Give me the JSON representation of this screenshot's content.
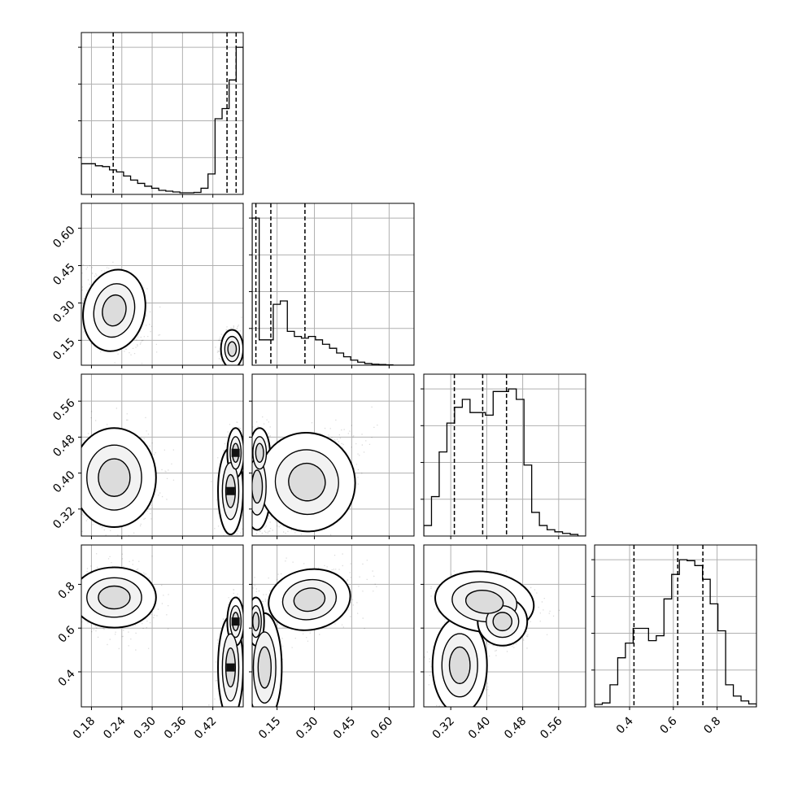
{
  "chart_data": {
    "type": "corner",
    "n_params": 4,
    "grid": true,
    "colors": {
      "line": "#000000",
      "grid": "#b0b0b0",
      "points": "#000000"
    },
    "params": [
      {
        "range": [
          0.16,
          0.48
        ],
        "ticks": [
          0.18,
          0.24,
          0.3,
          0.36,
          0.42
        ],
        "tick_labels": [
          "0.18",
          "0.24",
          "0.30",
          "0.36",
          "0.42"
        ],
        "quantiles": [
          0.223,
          0.448,
          0.466
        ]
      },
      {
        "range": [
          0.05,
          0.7
        ],
        "ticks": [
          0.15,
          0.3,
          0.45,
          0.6
        ],
        "tick_labels": [
          "0.15",
          "0.30",
          "0.45",
          "0.60"
        ],
        "quantiles": [
          0.065,
          0.125,
          0.262
        ]
      },
      {
        "range": [
          0.26,
          0.62
        ],
        "ticks": [
          0.32,
          0.4,
          0.48,
          0.56
        ],
        "tick_labels": [
          "0.32",
          "0.40",
          "0.48",
          "0.56"
        ],
        "quantiles": [
          0.328,
          0.391,
          0.444
        ]
      },
      {
        "range": [
          0.24,
          0.98
        ],
        "ticks": [
          0.4,
          0.6,
          0.8
        ],
        "tick_labels": [
          "0.4",
          "0.6",
          "0.8"
        ],
        "quantiles": [
          0.42,
          0.62,
          0.735
        ]
      }
    ],
    "histograms": [
      [
        0.75,
        0.75,
        0.7,
        0.68,
        0.6,
        0.55,
        0.45,
        0.35,
        0.27,
        0.2,
        0.15,
        0.1,
        0.08,
        0.06,
        0.04,
        0.04,
        0.05,
        0.15,
        0.5,
        1.85,
        2.1,
        2.8,
        3.6
      ],
      [
        4.35,
        0.75,
        0.75,
        1.8,
        1.9,
        1.0,
        0.85,
        0.8,
        0.85,
        0.75,
        0.62,
        0.5,
        0.36,
        0.25,
        0.15,
        0.09,
        0.05,
        0.03,
        0.02,
        0.01,
        0.0,
        0.0,
        0.0
      ],
      [
        0.2,
        0.75,
        1.6,
        2.15,
        2.45,
        2.6,
        2.35,
        2.35,
        2.3,
        2.75,
        2.75,
        2.8,
        2.6,
        1.35,
        0.45,
        0.2,
        0.12,
        0.08,
        0.05,
        0.03,
        0.0
      ],
      [
        0.05,
        0.08,
        0.45,
        1.0,
        1.3,
        1.6,
        1.6,
        1.35,
        1.45,
        2.2,
        2.7,
        3.0,
        2.98,
        2.88,
        2.6,
        2.1,
        1.55,
        0.45,
        0.22,
        0.12,
        0.06
      ]
    ],
    "pairs": [
      {
        "x": 0,
        "y": 1,
        "blobs": [
          {
            "cx": 0.225,
            "cy": 0.27,
            "sx": 0.022,
            "sy": 0.06,
            "r": -0.35,
            "w": 0.5
          },
          {
            "cx": 0.458,
            "cy": 0.115,
            "sx": 0.008,
            "sy": 0.028,
            "r": 0,
            "w": 0.5
          }
        ]
      },
      {
        "x": 0,
        "y": 2,
        "blobs": [
          {
            "cx": 0.225,
            "cy": 0.39,
            "sx": 0.03,
            "sy": 0.04,
            "r": 0,
            "w": 0.5
          },
          {
            "cx": 0.455,
            "cy": 0.36,
            "sx": 0.009,
            "sy": 0.035,
            "r": 0,
            "w": 0.25
          },
          {
            "cx": 0.465,
            "cy": 0.445,
            "sx": 0.006,
            "sy": 0.02,
            "r": 0,
            "w": 0.25
          }
        ]
      },
      {
        "x": 0,
        "y": 3,
        "blobs": [
          {
            "cx": 0.225,
            "cy": 0.74,
            "sx": 0.03,
            "sy": 0.05,
            "r": 0,
            "w": 0.5
          },
          {
            "cx": 0.455,
            "cy": 0.42,
            "sx": 0.009,
            "sy": 0.085,
            "r": 0,
            "w": 0.25
          },
          {
            "cx": 0.465,
            "cy": 0.63,
            "sx": 0.006,
            "sy": 0.04,
            "r": 0,
            "w": 0.25
          }
        ]
      },
      {
        "x": 1,
        "y": 2,
        "blobs": [
          {
            "cx": 0.07,
            "cy": 0.37,
            "sx": 0.02,
            "sy": 0.035,
            "r": 0,
            "w": 0.3
          },
          {
            "cx": 0.08,
            "cy": 0.445,
            "sx": 0.015,
            "sy": 0.02,
            "r": 0,
            "w": 0.2
          },
          {
            "cx": 0.27,
            "cy": 0.38,
            "sx": 0.07,
            "sy": 0.04,
            "r": 0.6,
            "w": 0.5
          }
        ]
      },
      {
        "x": 1,
        "y": 3,
        "blobs": [
          {
            "cx": 0.1,
            "cy": 0.42,
            "sx": 0.025,
            "sy": 0.09,
            "r": 0,
            "w": 0.3
          },
          {
            "cx": 0.065,
            "cy": 0.63,
            "sx": 0.012,
            "sy": 0.04,
            "r": 0,
            "w": 0.2
          },
          {
            "cx": 0.28,
            "cy": 0.73,
            "sx": 0.06,
            "sy": 0.05,
            "r": 0.3,
            "w": 0.5
          }
        ]
      },
      {
        "x": 2,
        "y": 3,
        "blobs": [
          {
            "cx": 0.34,
            "cy": 0.43,
            "sx": 0.022,
            "sy": 0.08,
            "r": 0,
            "w": 0.3
          },
          {
            "cx": 0.395,
            "cy": 0.72,
            "sx": 0.04,
            "sy": 0.05,
            "r": -0.2,
            "w": 0.35
          },
          {
            "cx": 0.435,
            "cy": 0.63,
            "sx": 0.02,
            "sy": 0.04,
            "r": 0,
            "w": 0.35
          }
        ]
      }
    ]
  }
}
